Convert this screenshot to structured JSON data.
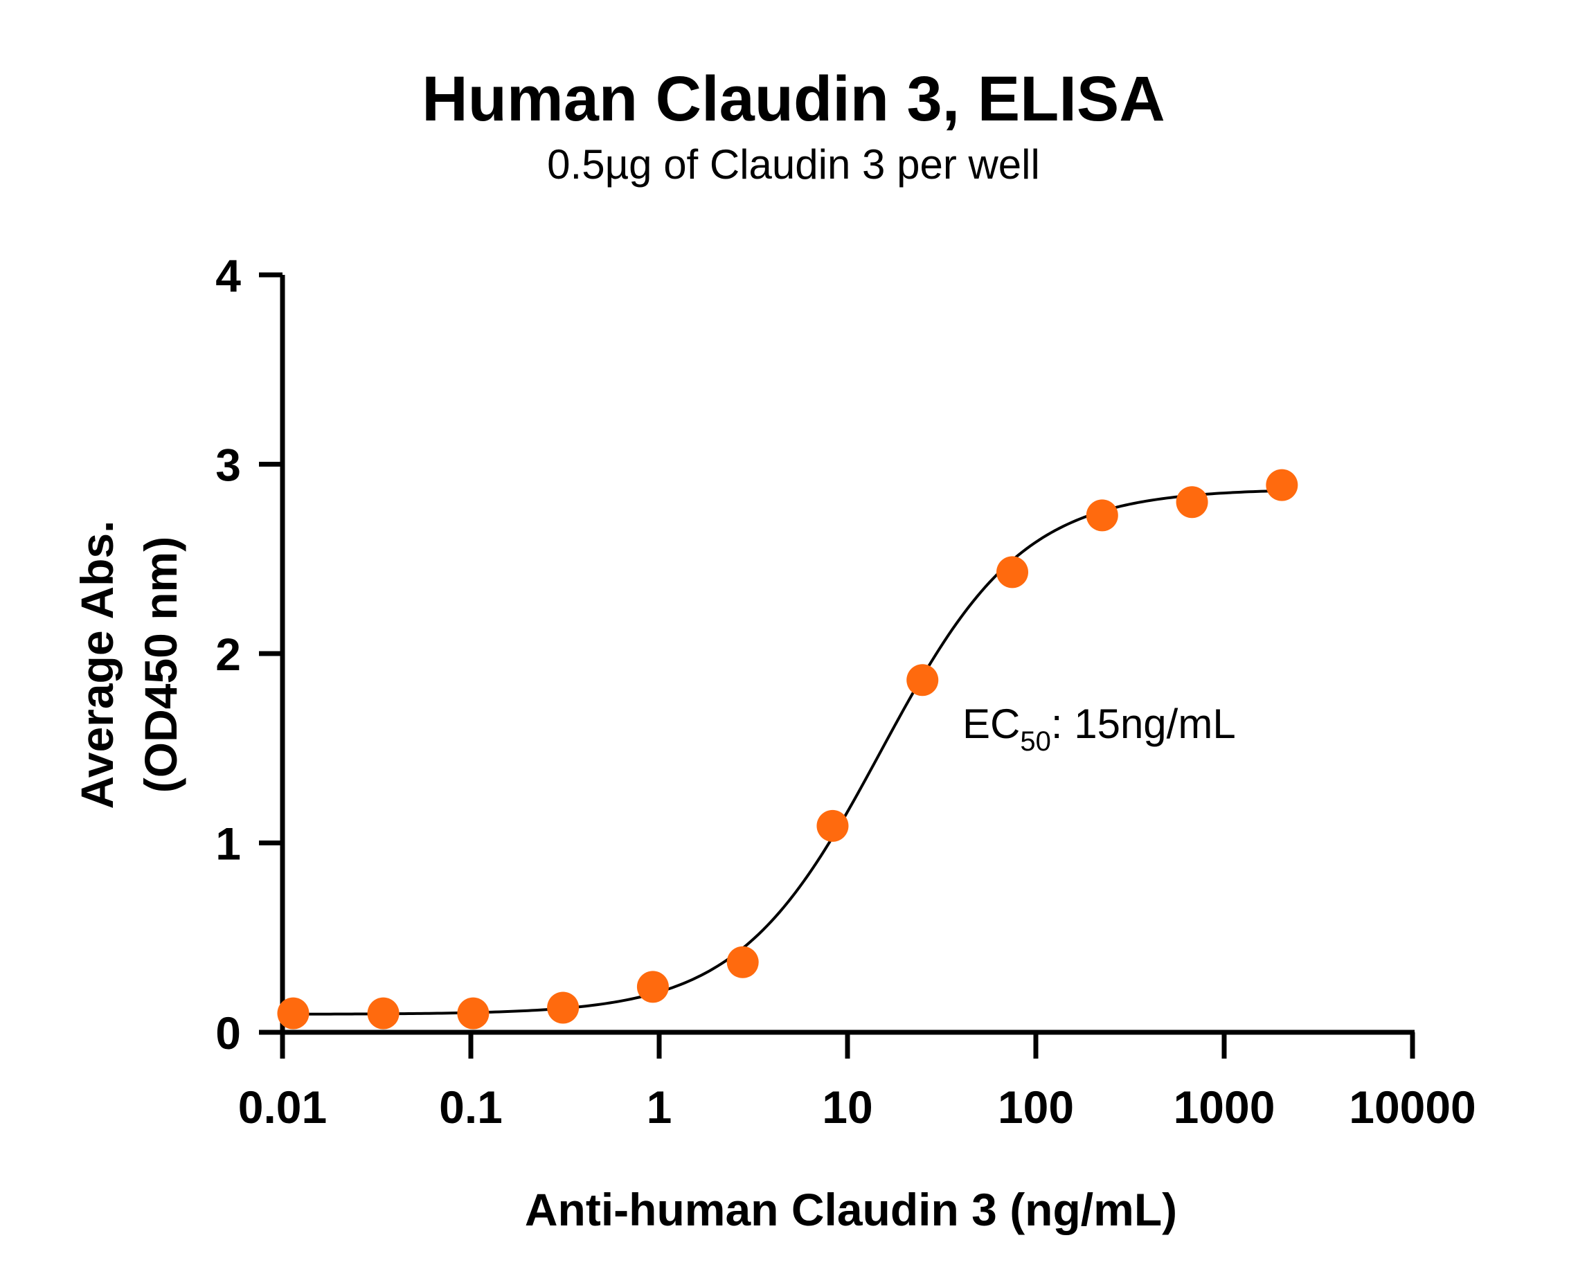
{
  "chart_data": {
    "type": "scatter",
    "title": "Human Claudin 3, ELISA",
    "subtitle": "0.5µg of Claudin 3 per well",
    "xlabel": "Anti-human Claudin 3 (ng/mL)",
    "ylabel_line1": "Average Abs.",
    "ylabel_line2": "(OD450 nm)",
    "xscale": "log",
    "xlim": [
      0.01,
      10000
    ],
    "ylim": [
      0,
      4
    ],
    "xticks": [
      "0.01",
      "0.1",
      "1",
      "10",
      "100",
      "1000",
      "10000"
    ],
    "yticks": [
      "0",
      "1",
      "2",
      "3",
      "4"
    ],
    "grid": false,
    "legend": "none",
    "point_color": "#FF6A0E",
    "line_color": "#000000",
    "series": [
      {
        "x": [
          0.0114,
          0.0343,
          0.1029,
          0.3086,
          0.926,
          2.778,
          8.333,
          25,
          75,
          225,
          675,
          2025
        ],
        "y": [
          0.1,
          0.1,
          0.1,
          0.13,
          0.24,
          0.37,
          1.09,
          1.86,
          2.43,
          2.73,
          2.8,
          2.89
        ]
      }
    ],
    "fit_curve": {
      "model": "4PL",
      "bottom": 0.095,
      "top": 2.87,
      "ec50": 15,
      "hill": 1.15
    },
    "annotation": {
      "text_main": "EC",
      "text_sub": "50",
      "text_rest": ": 15ng/mL"
    }
  }
}
